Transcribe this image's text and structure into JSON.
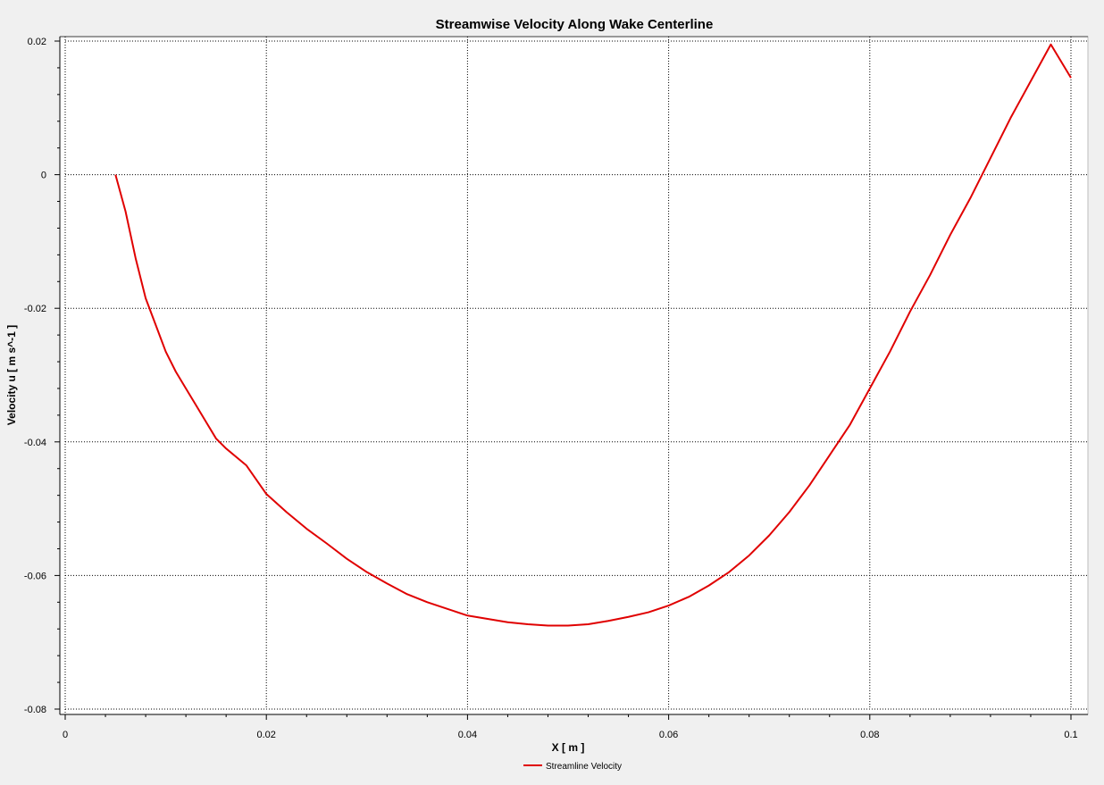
{
  "chart_data": {
    "type": "line",
    "title": "Streamwise Velocity Along Wake Centerline",
    "xlabel": "X [ m ]",
    "ylabel": "Velocity u [ m s^-1 ]",
    "xlim": [
      0,
      0.1
    ],
    "ylim": [
      -0.08,
      0.02
    ],
    "x_ticks": [
      "0",
      "0.02",
      "0.04",
      "0.06",
      "0.08",
      "0.1"
    ],
    "y_ticks": [
      "0.02",
      "0",
      "-0.02",
      "-0.04",
      "-0.06",
      "-0.08"
    ],
    "grid": true,
    "legend_position": "bottom-center",
    "series": [
      {
        "name": "Streamline Velocity",
        "color": "#e00000",
        "x": [
          0.005,
          0.006,
          0.007,
          0.008,
          0.009,
          0.01,
          0.011,
          0.012,
          0.013,
          0.014,
          0.015,
          0.016,
          0.018,
          0.02,
          0.022,
          0.024,
          0.026,
          0.028,
          0.03,
          0.032,
          0.034,
          0.036,
          0.038,
          0.04,
          0.042,
          0.044,
          0.046,
          0.048,
          0.05,
          0.052,
          0.054,
          0.056,
          0.058,
          0.06,
          0.062,
          0.064,
          0.066,
          0.068,
          0.07,
          0.072,
          0.074,
          0.076,
          0.078,
          0.08,
          0.082,
          0.084,
          0.086,
          0.088,
          0.09,
          0.092,
          0.094,
          0.096,
          0.098,
          0.1
        ],
        "y": [
          0.0,
          -0.0055,
          -0.0125,
          -0.0185,
          -0.0225,
          -0.0265,
          -0.0295,
          -0.032,
          -0.0345,
          -0.037,
          -0.0395,
          -0.041,
          -0.0435,
          -0.0478,
          -0.0505,
          -0.053,
          -0.0552,
          -0.0575,
          -0.0595,
          -0.0612,
          -0.0628,
          -0.064,
          -0.065,
          -0.066,
          -0.0665,
          -0.067,
          -0.0673,
          -0.0675,
          -0.0675,
          -0.0673,
          -0.0668,
          -0.0662,
          -0.0655,
          -0.0645,
          -0.0632,
          -0.0615,
          -0.0595,
          -0.057,
          -0.054,
          -0.0505,
          -0.0465,
          -0.042,
          -0.0375,
          -0.032,
          -0.0265,
          -0.0205,
          -0.015,
          -0.009,
          -0.0035,
          0.0025,
          0.0085,
          0.014,
          0.0195,
          0.0145
        ]
      }
    ]
  }
}
